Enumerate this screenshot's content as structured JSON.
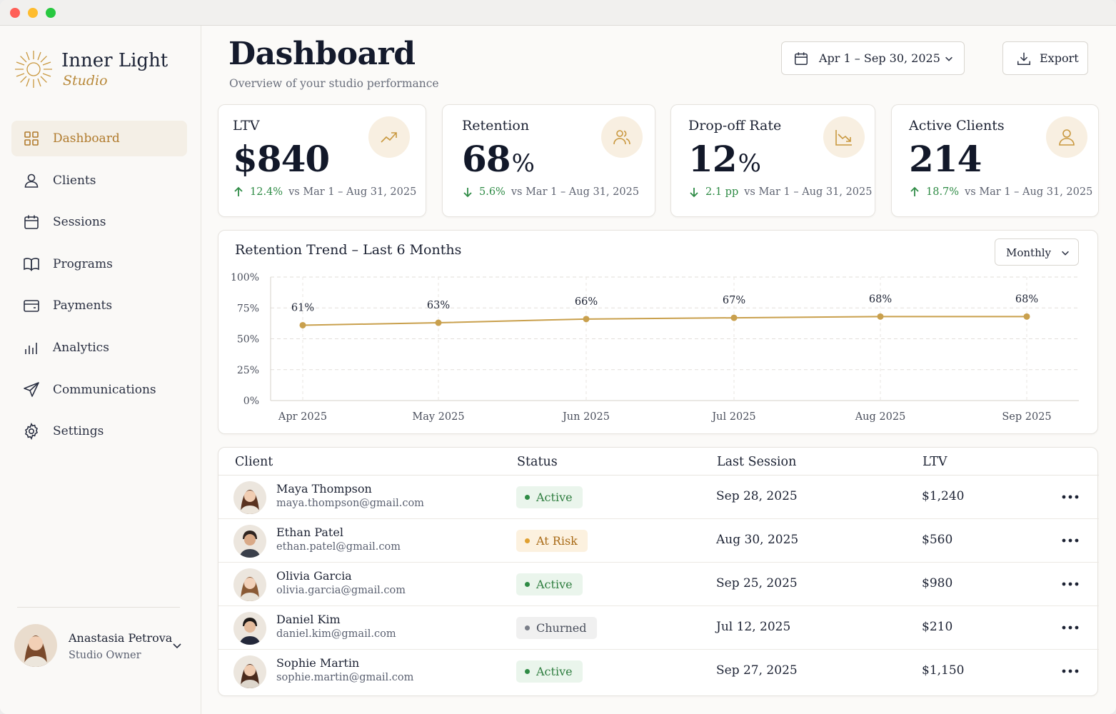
{
  "brand": {
    "name": "Inner Light",
    "tagline": "Studio",
    "accent": "#b8893a"
  },
  "sidebar": {
    "items": [
      {
        "label": "Dashboard",
        "icon": "grid-icon",
        "active": true
      },
      {
        "label": "Clients",
        "icon": "user-icon"
      },
      {
        "label": "Sessions",
        "icon": "calendar-icon"
      },
      {
        "label": "Programs",
        "icon": "book-icon"
      },
      {
        "label": "Payments",
        "icon": "card-icon"
      },
      {
        "label": "Analytics",
        "icon": "bar-chart-icon"
      },
      {
        "label": "Communications",
        "icon": "send-icon"
      },
      {
        "label": "Settings",
        "icon": "gear-icon"
      }
    ],
    "user": {
      "name": "Anastasia Petrova",
      "role": "Studio Owner"
    }
  },
  "header": {
    "title": "Dashboard",
    "subtitle": "Overview of your studio performance",
    "date_range": "Apr 1 – Sep 30, 2025",
    "export_label": "Export"
  },
  "kpis": [
    {
      "label": "LTV",
      "value": "$840",
      "unit": "",
      "delta": "12.4%",
      "direction": "up",
      "compare": "vs Mar 1 – Aug 31, 2025",
      "icon": "trend-up-icon"
    },
    {
      "label": "Retention",
      "value": "68",
      "unit": "%",
      "delta": "5.6%",
      "direction": "down",
      "compare": "vs Mar 1 – Aug 31, 2025",
      "icon": "users-icon"
    },
    {
      "label": "Drop-off Rate",
      "value": "12",
      "unit": "%",
      "delta": "2.1 pp",
      "direction": "down",
      "compare": "vs Mar 1 – Aug 31, 2025",
      "icon": "trend-down-icon"
    },
    {
      "label": "Active Clients",
      "value": "214",
      "unit": "",
      "delta": "18.7%",
      "direction": "up",
      "compare": "vs Mar 1 – Aug 31, 2025",
      "icon": "user-icon"
    }
  ],
  "chart": {
    "title": "Retention Trend – Last 6 Months",
    "granularity": "Monthly"
  },
  "chart_data": {
    "type": "line",
    "title": "Retention Trend – Last 6 Months",
    "categories": [
      "Apr 2025",
      "May 2025",
      "Jun 2025",
      "Jul 2025",
      "Aug 2025",
      "Sep 2025"
    ],
    "values": [
      61,
      63,
      66,
      67,
      68,
      68
    ],
    "data_labels": [
      "61%",
      "63%",
      "66%",
      "67%",
      "68%",
      "68%"
    ],
    "yticks": [
      "0%",
      "25%",
      "50%",
      "75%",
      "100%"
    ],
    "ylim": [
      0,
      100
    ],
    "grid": true,
    "color": "#c9a04d"
  },
  "table": {
    "headers": [
      "Client",
      "Status",
      "Last Session",
      "LTV"
    ],
    "rows": [
      {
        "name": "Maya Thompson",
        "email": "maya.thompson@gmail.com",
        "status": "Active",
        "last_session": "Sep 28, 2025",
        "ltv": "$1,240"
      },
      {
        "name": "Ethan Patel",
        "email": "ethan.patel@gmail.com",
        "status": "At Risk",
        "last_session": "Aug 30, 2025",
        "ltv": "$560"
      },
      {
        "name": "Olivia Garcia",
        "email": "olivia.garcia@gmail.com",
        "status": "Active",
        "last_session": "Sep 25, 2025",
        "ltv": "$980"
      },
      {
        "name": "Daniel Kim",
        "email": "daniel.kim@gmail.com",
        "status": "Churned",
        "last_session": "Jul 12, 2025",
        "ltv": "$210"
      },
      {
        "name": "Sophie Martin",
        "email": "sophie.martin@gmail.com",
        "status": "Active",
        "last_session": "Sep 27, 2025",
        "ltv": "$1,150"
      }
    ]
  },
  "status_colors": {
    "Active": {
      "bg": "#eaf5ec",
      "text": "#2e7d3f",
      "dot": "#2e8b45"
    },
    "At Risk": {
      "bg": "#fcf1df",
      "text": "#a86a16",
      "dot": "#e0a030"
    },
    "Churned": {
      "bg": "#f0f0f0",
      "text": "#4a4f5c",
      "dot": "#7a7e88"
    }
  }
}
